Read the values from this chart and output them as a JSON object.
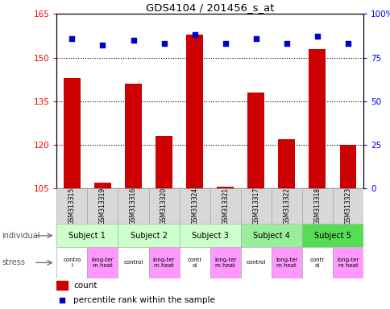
{
  "title": "GDS4104 / 201456_s_at",
  "samples": [
    "GSM313315",
    "GSM313319",
    "GSM313316",
    "GSM313320",
    "GSM313324",
    "GSM313321",
    "GSM313317",
    "GSM313322",
    "GSM313318",
    "GSM313323"
  ],
  "counts": [
    143,
    107,
    141,
    123,
    158,
    105.5,
    138,
    122,
    153,
    120
  ],
  "percentiles": [
    86,
    82,
    85,
    83,
    88,
    83,
    86,
    83,
    87,
    83
  ],
  "ylim_left": [
    105,
    165
  ],
  "ylim_right": [
    0,
    100
  ],
  "yticks_left": [
    105,
    120,
    135,
    150,
    165
  ],
  "yticks_right": [
    0,
    25,
    50,
    75,
    100
  ],
  "ytick_labels_right": [
    "0",
    "25",
    "50",
    "75",
    "100%"
  ],
  "bar_color": "#cc0000",
  "dot_color": "#0000cc",
  "subjects": [
    {
      "label": "Subject 1",
      "start": 0,
      "end": 2,
      "color": "#ccffcc"
    },
    {
      "label": "Subject 2",
      "start": 2,
      "end": 4,
      "color": "#ccffcc"
    },
    {
      "label": "Subject 3",
      "start": 4,
      "end": 6,
      "color": "#ccffcc"
    },
    {
      "label": "Subject 4",
      "start": 6,
      "end": 8,
      "color": "#99ee99"
    },
    {
      "label": "Subject 5",
      "start": 8,
      "end": 10,
      "color": "#55dd55"
    }
  ],
  "stress": [
    {
      "label": "contro\nl",
      "color": "#ffffff"
    },
    {
      "label": "long-ter\nm heat",
      "color": "#ff99ff"
    },
    {
      "label": "control",
      "color": "#ffffff"
    },
    {
      "label": "long-ter\nm heat",
      "color": "#ff99ff"
    },
    {
      "label": "contr\nol",
      "color": "#ffffff"
    },
    {
      "label": "long-ter\nm heat",
      "color": "#ff99ff"
    },
    {
      "label": "control",
      "color": "#ffffff"
    },
    {
      "label": "long-ter\nm heat",
      "color": "#ff99ff"
    },
    {
      "label": "contr\nol",
      "color": "#ffffff"
    },
    {
      "label": "long-ter\nm heat",
      "color": "#ff99ff"
    }
  ],
  "legend_count_color": "#cc0000",
  "legend_dot_color": "#0000cc",
  "legend_count_label": "count",
  "legend_dot_label": "percentile rank within the sample",
  "individual_label": "individual",
  "stress_label": "stress"
}
